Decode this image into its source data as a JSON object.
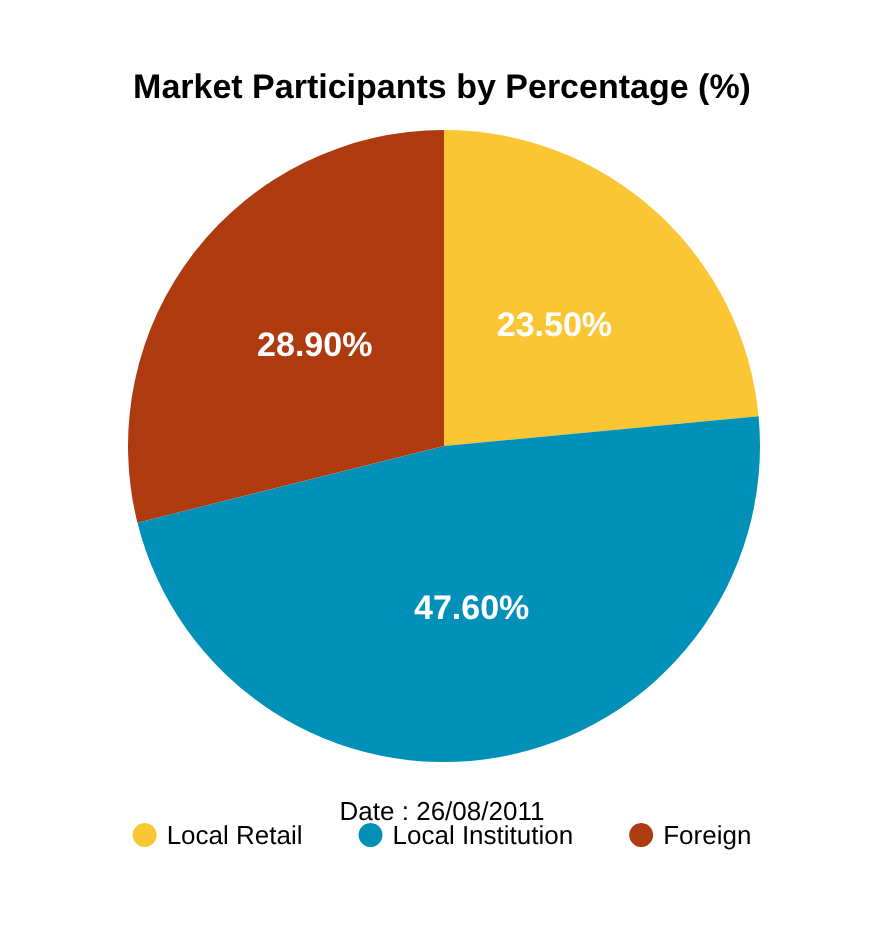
{
  "chart_data": {
    "type": "pie",
    "title": "Market Participants by Percentage (%)",
    "categories": [
      "Local Retail",
      "Local Institution",
      "Foreign"
    ],
    "values": [
      23.5,
      47.6,
      28.9
    ],
    "value_labels": [
      "23.50%",
      "47.60%",
      "28.90%"
    ],
    "colors": [
      "#fbc634",
      "#0190b8",
      "#ae3b10"
    ],
    "annotations": [
      "Date : 26/08/2011"
    ],
    "legend": "bottom"
  }
}
